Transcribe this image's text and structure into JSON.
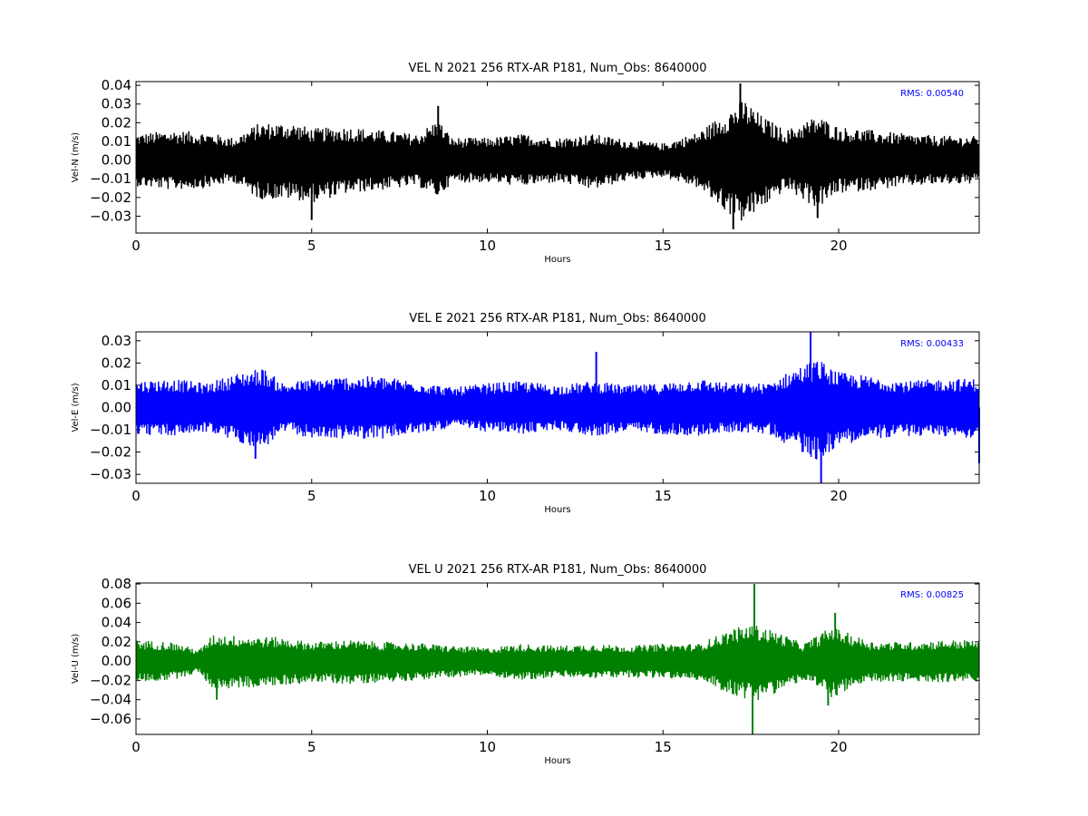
{
  "chart_data": [
    {
      "type": "line",
      "title": "VEL N 2021 256 RTX-AR  P181, Num_Obs: 8640000",
      "xlabel": "Hours",
      "ylabel": "Vel-N (m/s)",
      "xlim": [
        0,
        24
      ],
      "ylim": [
        -0.039,
        0.042
      ],
      "xticks": [
        0,
        5,
        10,
        15,
        20
      ],
      "xtick_labels": [
        "0",
        "5",
        "10",
        "15",
        "20"
      ],
      "yticks": [
        -0.03,
        -0.02,
        -0.01,
        0.0,
        0.01,
        0.02,
        0.03,
        0.04
      ],
      "ytick_labels": [
        "−0.03",
        "−0.02",
        "−0.01",
        "0.00",
        "0.01",
        "0.02",
        "0.03",
        "0.04"
      ],
      "rms_label": "RMS:  0.00540",
      "color": "#000000",
      "envelope": {
        "x": [
          0,
          1,
          2,
          2.8,
          3.5,
          4.5,
          5,
          6,
          7,
          8,
          8.6,
          9,
          10,
          11,
          12,
          13,
          14,
          15,
          16,
          16.8,
          17.3,
          17.8,
          18.5,
          19.4,
          20,
          21,
          22,
          23,
          24
        ],
        "upper": [
          0.014,
          0.016,
          0.015,
          0.012,
          0.02,
          0.02,
          0.017,
          0.018,
          0.016,
          0.014,
          0.022,
          0.012,
          0.012,
          0.014,
          0.012,
          0.014,
          0.011,
          0.009,
          0.015,
          0.026,
          0.033,
          0.024,
          0.016,
          0.024,
          0.018,
          0.016,
          0.014,
          0.013,
          0.013
        ],
        "lower": [
          -0.014,
          -0.016,
          -0.015,
          -0.012,
          -0.021,
          -0.021,
          -0.023,
          -0.018,
          -0.016,
          -0.014,
          -0.02,
          -0.012,
          -0.012,
          -0.014,
          -0.012,
          -0.016,
          -0.011,
          -0.009,
          -0.015,
          -0.028,
          -0.034,
          -0.026,
          -0.016,
          -0.026,
          -0.018,
          -0.016,
          -0.014,
          -0.013,
          -0.013
        ]
      },
      "spikes": [
        {
          "x": 8.6,
          "y": 0.029
        },
        {
          "x": 5.0,
          "y": -0.032
        },
        {
          "x": 17.2,
          "y": 0.041
        },
        {
          "x": 17.0,
          "y": -0.037
        },
        {
          "x": 19.4,
          "y": -0.031
        }
      ]
    },
    {
      "type": "line",
      "title": "VEL E 2021 256 RTX-AR  P181, Num_Obs: 8640000",
      "xlabel": "Hours",
      "ylabel": "Vel-E (m/s)",
      "xlim": [
        0,
        24
      ],
      "ylim": [
        -0.034,
        0.034
      ],
      "xticks": [
        0,
        5,
        10,
        15,
        20
      ],
      "xtick_labels": [
        "0",
        "5",
        "10",
        "15",
        "20"
      ],
      "yticks": [
        -0.03,
        -0.02,
        -0.01,
        0.0,
        0.01,
        0.02,
        0.03
      ],
      "ytick_labels": [
        "−0.03",
        "−0.02",
        "−0.01",
        "0.00",
        "0.01",
        "0.02",
        "0.03"
      ],
      "rms_label": "RMS:  0.00433",
      "color": "#0000ff",
      "envelope": {
        "x": [
          0,
          1,
          2,
          3,
          3.6,
          4.2,
          5,
          6,
          7,
          8,
          9,
          10,
          11,
          12,
          13,
          14,
          15,
          16,
          17,
          18,
          18.8,
          19.4,
          20,
          21,
          22,
          23,
          24
        ],
        "upper": [
          0.012,
          0.013,
          0.011,
          0.016,
          0.018,
          0.011,
          0.013,
          0.014,
          0.014,
          0.012,
          0.009,
          0.011,
          0.012,
          0.01,
          0.012,
          0.01,
          0.011,
          0.013,
          0.011,
          0.011,
          0.018,
          0.022,
          0.016,
          0.014,
          0.012,
          0.013,
          0.013
        ],
        "lower": [
          -0.012,
          -0.013,
          -0.011,
          -0.016,
          -0.019,
          -0.011,
          -0.014,
          -0.014,
          -0.014,
          -0.012,
          -0.009,
          -0.011,
          -0.012,
          -0.01,
          -0.013,
          -0.011,
          -0.012,
          -0.013,
          -0.011,
          -0.012,
          -0.019,
          -0.024,
          -0.017,
          -0.014,
          -0.013,
          -0.013,
          -0.014
        ]
      },
      "spikes": [
        {
          "x": 13.1,
          "y": 0.025
        },
        {
          "x": 19.2,
          "y": 0.034
        },
        {
          "x": 19.5,
          "y": -0.034
        },
        {
          "x": 3.4,
          "y": -0.023
        },
        {
          "x": 24.0,
          "y": -0.025
        }
      ]
    },
    {
      "type": "line",
      "title": "VEL U 2021 256 RTX-AR  P181, Num_Obs: 8640000",
      "xlabel": "Hours",
      "ylabel": "Vel-U (m/s)",
      "xlim": [
        0,
        24
      ],
      "ylim": [
        -0.076,
        0.081
      ],
      "xticks": [
        0,
        5,
        10,
        15,
        20
      ],
      "xtick_labels": [
        "0",
        "5",
        "10",
        "15",
        "20"
      ],
      "yticks": [
        -0.06,
        -0.04,
        -0.02,
        0.0,
        0.02,
        0.04,
        0.06,
        0.08
      ],
      "ytick_labels": [
        "−0.06",
        "−0.04",
        "−0.02",
        "0.00",
        "0.02",
        "0.04",
        "0.06",
        "0.08"
      ],
      "rms_label": "RMS:  0.00825",
      "color": "#008000",
      "envelope": {
        "x": [
          0,
          1,
          1.8,
          2.2,
          3,
          4,
          5,
          6,
          7,
          8,
          9,
          10,
          11,
          12,
          13,
          14,
          15,
          16,
          17,
          17.6,
          18.3,
          19,
          19.8,
          20.5,
          21,
          22,
          23,
          24
        ],
        "upper": [
          0.022,
          0.02,
          0.012,
          0.028,
          0.026,
          0.025,
          0.02,
          0.022,
          0.02,
          0.019,
          0.016,
          0.014,
          0.018,
          0.016,
          0.018,
          0.016,
          0.018,
          0.018,
          0.034,
          0.038,
          0.03,
          0.018,
          0.036,
          0.026,
          0.02,
          0.02,
          0.022,
          0.022
        ],
        "lower": [
          -0.022,
          -0.02,
          -0.012,
          -0.03,
          -0.028,
          -0.026,
          -0.022,
          -0.024,
          -0.022,
          -0.02,
          -0.017,
          -0.015,
          -0.02,
          -0.017,
          -0.018,
          -0.017,
          -0.018,
          -0.02,
          -0.036,
          -0.042,
          -0.032,
          -0.02,
          -0.038,
          -0.028,
          -0.022,
          -0.022,
          -0.022,
          -0.022
        ]
      },
      "spikes": [
        {
          "x": 17.6,
          "y": 0.08
        },
        {
          "x": 17.55,
          "y": -0.076
        },
        {
          "x": 2.3,
          "y": -0.04
        },
        {
          "x": 19.9,
          "y": 0.05
        },
        {
          "x": 19.7,
          "y": -0.046
        }
      ]
    }
  ]
}
